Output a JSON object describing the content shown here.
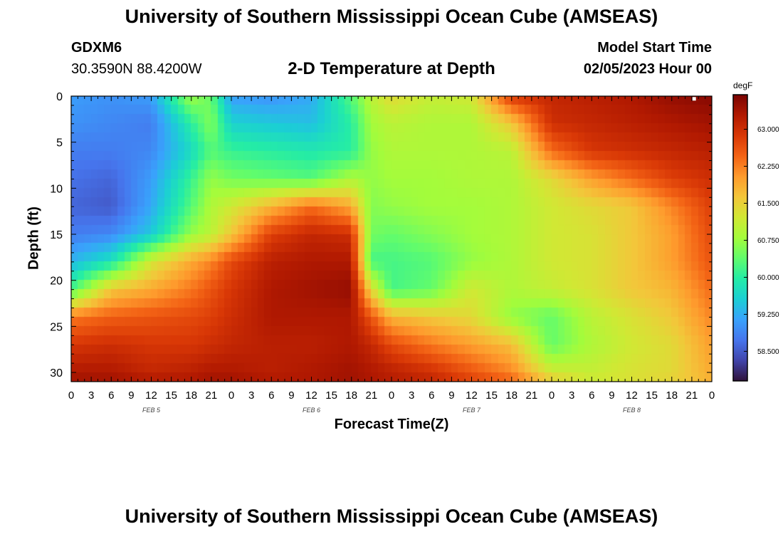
{
  "page": {
    "title_top": "University of Southern Mississippi Ocean Cube (AMSEAS)",
    "title_bottom": "University of Southern Mississippi Ocean Cube (AMSEAS)",
    "station_id": "GDXM6",
    "station_coords": "30.3590N  88.4200W",
    "plot_title": "2-D Temperature at Depth",
    "model_start_label": "Model Start Time",
    "model_start_value": "02/05/2023 Hour 00"
  },
  "chart_data": {
    "type": "heatmap",
    "title": "2-D Temperature at Depth",
    "xlabel": "Forecast Time(Z)",
    "ylabel": "Depth (ft)",
    "x_ticks": [
      "0",
      "3",
      "6",
      "9",
      "12",
      "15",
      "18",
      "21",
      "0",
      "3",
      "6",
      "9",
      "12",
      "15",
      "18",
      "21",
      "0",
      "3",
      "6",
      "9",
      "12",
      "15",
      "18",
      "21",
      "0",
      "3",
      "6",
      "9",
      "12",
      "15",
      "18",
      "21",
      "0"
    ],
    "x_range_hours": [
      0,
      96
    ],
    "date_labels": [
      {
        "text": "FEB 5",
        "hour": 12
      },
      {
        "text": "FEB 6",
        "hour": 36
      },
      {
        "text": "FEB 7",
        "hour": 60
      },
      {
        "text": "FEB 8",
        "hour": 84
      }
    ],
    "y_ticks": [
      "0",
      "5",
      "10",
      "15",
      "20",
      "25",
      "30"
    ],
    "y_range_ft": [
      0,
      31
    ],
    "colorbar": {
      "unit": "degF",
      "range": [
        57.9,
        63.7
      ],
      "ticks": [
        "63.000",
        "62.250",
        "61.500",
        "60.750",
        "60.000",
        "59.250",
        "58.500"
      ],
      "tick_values": [
        63.0,
        62.25,
        61.5,
        60.75,
        60.0,
        59.25,
        58.5
      ],
      "colors": [
        "#30123b",
        "#4145ab",
        "#4675ed",
        "#39a2fc",
        "#1bcfd4",
        "#24eca6",
        "#61fc6c",
        "#a4fc3b",
        "#d1e834",
        "#f3c63a",
        "#fe9b2d",
        "#f36315",
        "#d93806",
        "#b11901",
        "#7a0403"
      ]
    },
    "time_hours": [
      0,
      6,
      12,
      18,
      21,
      24,
      30,
      36,
      42,
      45,
      48,
      54,
      60,
      66,
      72,
      78,
      84,
      90,
      96
    ],
    "depth_ft": [
      0,
      3,
      6,
      9,
      12,
      15,
      18,
      21,
      24,
      27,
      30,
      31
    ],
    "temperature_degF": [
      [
        59.1,
        59.0,
        59.1,
        60.8,
        60.4,
        59.1,
        59.0,
        59.2,
        60.3,
        61.0,
        61.4,
        61.1,
        61.2,
        62.9,
        63.1,
        63.2,
        63.3,
        63.5,
        63.6
      ],
      [
        59.0,
        58.9,
        58.8,
        60.0,
        60.6,
        59.6,
        59.5,
        59.4,
        60.0,
        60.8,
        61.0,
        60.9,
        60.9,
        61.6,
        63.0,
        63.1,
        63.2,
        63.3,
        63.4
      ],
      [
        58.8,
        58.8,
        58.9,
        59.7,
        60.3,
        60.1,
        60.0,
        59.9,
        60.0,
        60.7,
        60.9,
        60.9,
        60.9,
        61.0,
        62.4,
        62.9,
        63.0,
        63.1,
        63.2
      ],
      [
        58.7,
        58.6,
        59.1,
        60.1,
        60.7,
        60.5,
        60.4,
        60.3,
        60.9,
        60.7,
        60.8,
        60.8,
        60.9,
        60.9,
        61.4,
        62.0,
        62.4,
        62.8,
        63.0
      ],
      [
        58.6,
        58.5,
        59.2,
        60.3,
        60.9,
        61.2,
        61.8,
        62.4,
        61.9,
        60.6,
        60.7,
        60.8,
        60.8,
        60.9,
        61.2,
        61.4,
        61.6,
        62.2,
        62.8
      ],
      [
        58.8,
        58.9,
        59.5,
        60.7,
        61.0,
        61.6,
        62.8,
        63.1,
        63.0,
        60.5,
        60.4,
        60.6,
        60.8,
        60.9,
        61.2,
        61.3,
        61.6,
        62.0,
        62.7
      ],
      [
        59.3,
        59.8,
        61.2,
        61.9,
        62.2,
        62.7,
        63.2,
        63.3,
        63.3,
        60.2,
        60.2,
        60.3,
        60.7,
        60.9,
        61.2,
        61.3,
        61.6,
        62.0,
        62.6
      ],
      [
        60.2,
        61.6,
        61.9,
        62.3,
        62.6,
        62.9,
        63.3,
        63.4,
        63.5,
        61.4,
        60.2,
        60.4,
        61.2,
        60.9,
        61.1,
        61.3,
        61.6,
        61.8,
        62.4
      ],
      [
        62.3,
        62.5,
        62.6,
        62.7,
        62.8,
        63.0,
        63.3,
        63.3,
        63.3,
        62.6,
        61.8,
        61.6,
        61.4,
        60.7,
        60.4,
        61.0,
        61.3,
        61.6,
        62.2
      ],
      [
        62.9,
        63.0,
        62.9,
        62.9,
        63.0,
        63.1,
        63.2,
        63.2,
        63.3,
        63.1,
        62.7,
        62.3,
        62.0,
        61.7,
        60.4,
        60.9,
        61.2,
        61.4,
        62.0
      ],
      [
        63.3,
        63.3,
        63.1,
        63.2,
        63.3,
        63.3,
        63.2,
        63.3,
        63.4,
        63.3,
        63.2,
        63.0,
        62.6,
        62.2,
        61.2,
        61.1,
        61.3,
        61.4,
        61.9
      ],
      [
        63.4,
        63.4,
        63.3,
        63.3,
        63.4,
        63.4,
        63.3,
        63.3,
        63.4,
        63.3,
        63.2,
        63.1,
        62.8,
        62.5,
        61.6,
        61.2,
        61.3,
        61.5,
        61.8
      ]
    ]
  }
}
